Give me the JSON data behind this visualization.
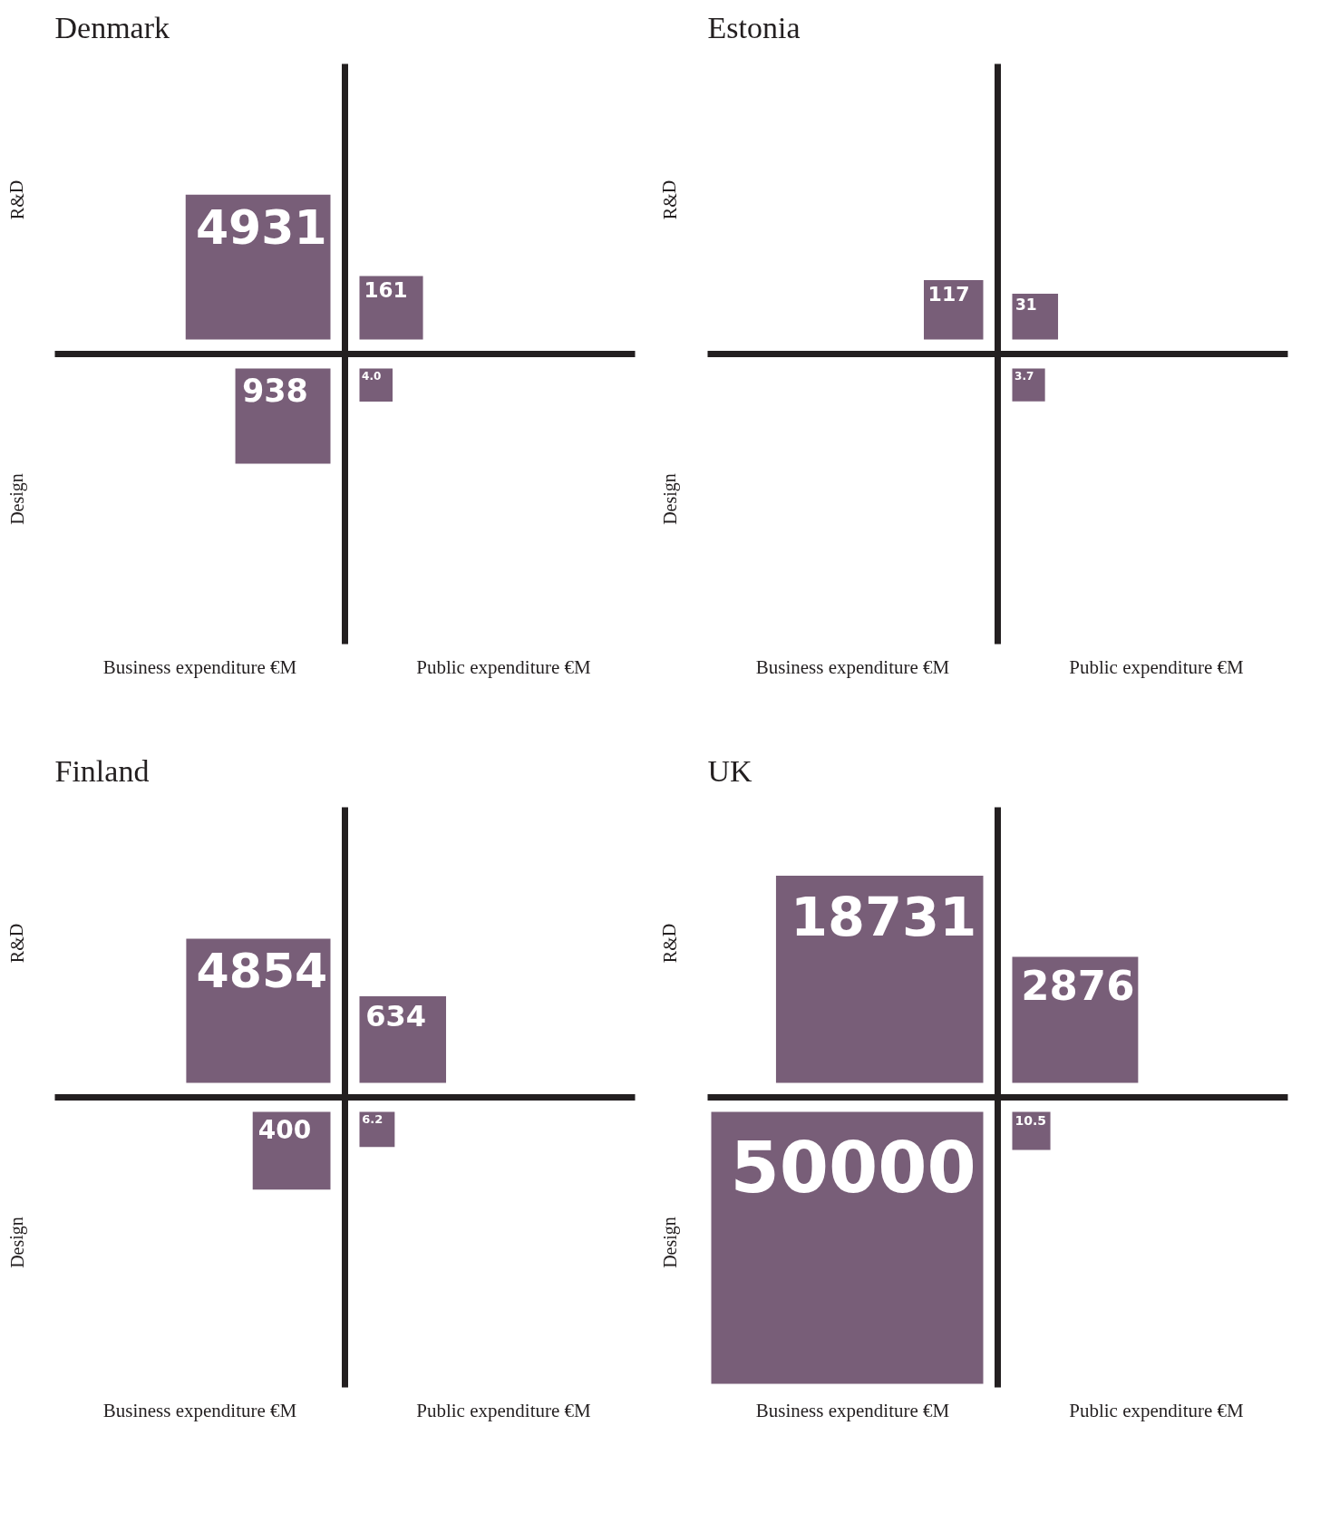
{
  "chart_data": [
    {
      "type": "other",
      "title": "Denmark",
      "categories": [
        "Business expenditure €M",
        "Public expenditure €M"
      ],
      "y_categories": [
        "R&D",
        "Design"
      ],
      "series": [
        {
          "color": "#785e78",
          "values": [
            4931,
            161
          ]
        },
        {
          "color": "#785e78",
          "values": [
            938,
            4.0
          ],
          "value_labels": [
            "938",
            "4.0"
          ]
        }
      ],
      "data_labels": true
    },
    {
      "type": "other",
      "title": "Estonia",
      "categories": [
        "Business expenditure €M",
        "Public expenditure €M"
      ],
      "y_categories": [
        "R&D",
        "Design"
      ],
      "series": [
        {
          "color": "#785e78",
          "values": [
            117,
            31
          ]
        },
        {
          "color": "#785e78",
          "values": [
            null,
            3.7
          ]
        }
      ],
      "data_labels": true
    },
    {
      "type": "other",
      "title": "Finland",
      "categories": [
        "Business expenditure €M",
        "Public expenditure €M"
      ],
      "y_categories": [
        "R&D",
        "Design"
      ],
      "series": [
        {
          "color": "#785e78",
          "values": [
            4854,
            634
          ]
        },
        {
          "color": "#785e78",
          "values": [
            400,
            6.2
          ]
        }
      ],
      "data_labels": true
    },
    {
      "type": "other",
      "title": "UK",
      "categories": [
        "Business expenditure €M",
        "Public expenditure €M"
      ],
      "y_categories": [
        "R&D",
        "Design"
      ],
      "series": [
        {
          "color": "#785e78",
          "values": [
            18731,
            2876
          ]
        },
        {
          "color": "#785e78",
          "values": [
            50000,
            10.5
          ]
        }
      ],
      "data_labels": true
    }
  ]
}
